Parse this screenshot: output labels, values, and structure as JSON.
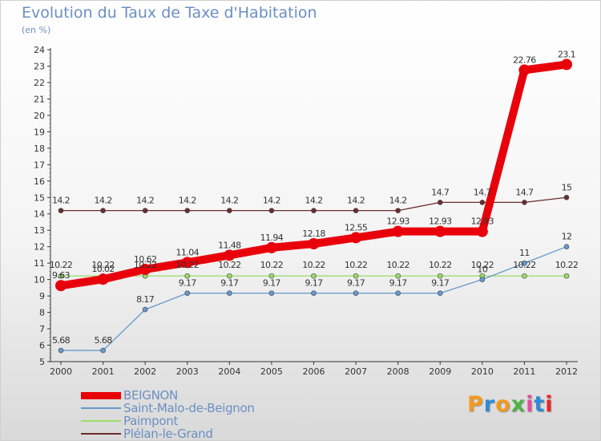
{
  "title": "Evolution du Taux de Taxe d'Habitation",
  "subtitle": "(en %)",
  "logo": {
    "text": "Proxiti",
    "colors": [
      "#f29a1f",
      "#2f8ad6",
      "#f29a1f",
      "#4db34a",
      "#e84d9a",
      "#2f8ad6",
      "#e8262c"
    ]
  },
  "chart_data": {
    "type": "line",
    "x": [
      "2000",
      "2001",
      "2002",
      "2003",
      "2004",
      "2005",
      "2006",
      "2007",
      "2008",
      "2009",
      "2010",
      "2011",
      "2012"
    ],
    "ylim": [
      5,
      24
    ],
    "yticks": [
      5,
      6,
      7,
      8,
      9,
      10,
      11,
      12,
      13,
      14,
      15,
      16,
      17,
      18,
      19,
      20,
      21,
      22,
      23,
      24
    ],
    "grid": false,
    "legend_position": "bottom-left",
    "series": [
      {
        "name": "BEIGNON",
        "color": "#e8000b",
        "width": 10,
        "values": [
          9.63,
          10.02,
          10.62,
          11.04,
          11.48,
          11.94,
          12.18,
          12.55,
          12.93,
          12.93,
          12.93,
          22.76,
          23.1
        ],
        "labels": [
          "9.63",
          "10.02",
          "10.62",
          "11.04",
          "11.48",
          "11.94",
          "12.18",
          "12.55",
          "12.93",
          "12.93",
          "12.93",
          "22.76",
          "23.1"
        ]
      },
      {
        "name": "Saint-Malo-de-Beignon",
        "color": "#6699cc",
        "width": 1.3,
        "values": [
          5.68,
          5.68,
          8.17,
          9.17,
          9.17,
          9.17,
          9.17,
          9.17,
          9.17,
          9.17,
          10.0,
          11.0,
          12.0
        ],
        "labels": [
          "5.68",
          "5.68",
          "8.17",
          "9.17",
          "9.17",
          "9.17",
          "9.17",
          "9.17",
          "9.17",
          "9.17",
          "10",
          "11",
          "12"
        ]
      },
      {
        "name": "Paimpont",
        "color": "#99dd66",
        "width": 1.3,
        "values": [
          10.22,
          10.22,
          10.22,
          10.22,
          10.22,
          10.22,
          10.22,
          10.22,
          10.22,
          10.22,
          10.22,
          10.22,
          10.22
        ],
        "labels": [
          "10.22",
          "10.22",
          "10.22",
          "10.22",
          "10.22",
          "10.22",
          "10.22",
          "10.22",
          "10.22",
          "10.22",
          "10.22",
          "10.22",
          "10.22"
        ]
      },
      {
        "name": "Plélan-le-Grand",
        "color": "#6b2d2d",
        "width": 1.3,
        "values": [
          14.2,
          14.2,
          14.2,
          14.2,
          14.2,
          14.2,
          14.2,
          14.2,
          14.2,
          14.7,
          14.7,
          14.7,
          15.0
        ],
        "labels": [
          "14.2",
          "14.2",
          "14.2",
          "14.2",
          "14.2",
          "14.2",
          "14.2",
          "14.2",
          "14.2",
          "14.7",
          "14.7",
          "14.7",
          "15"
        ]
      }
    ]
  }
}
